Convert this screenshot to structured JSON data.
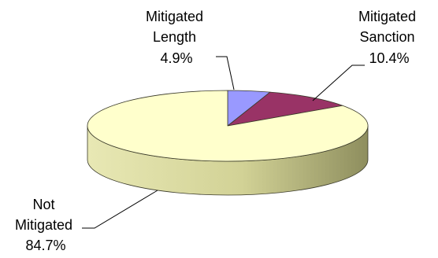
{
  "chart_data": {
    "type": "pie",
    "title": "",
    "slices": [
      {
        "label_lines": [
          "Mitigated",
          "Length"
        ],
        "pct_text": "4.9%",
        "value": 4.9,
        "top_color": "#9999FF",
        "side_color": "#6D6DC4"
      },
      {
        "label_lines": [
          "Mitigated",
          "Sanction"
        ],
        "pct_text": "10.4%",
        "value": 10.4,
        "top_color": "#993366",
        "side_color": "#6E2049"
      },
      {
        "label_lines": [
          "Not",
          "Mitigated"
        ],
        "pct_text": "84.7%",
        "value": 84.7,
        "top_color": "#FFFFCC",
        "side_color": "#D6D69C"
      }
    ],
    "style": "3d-exploded-none",
    "legend": "none"
  }
}
